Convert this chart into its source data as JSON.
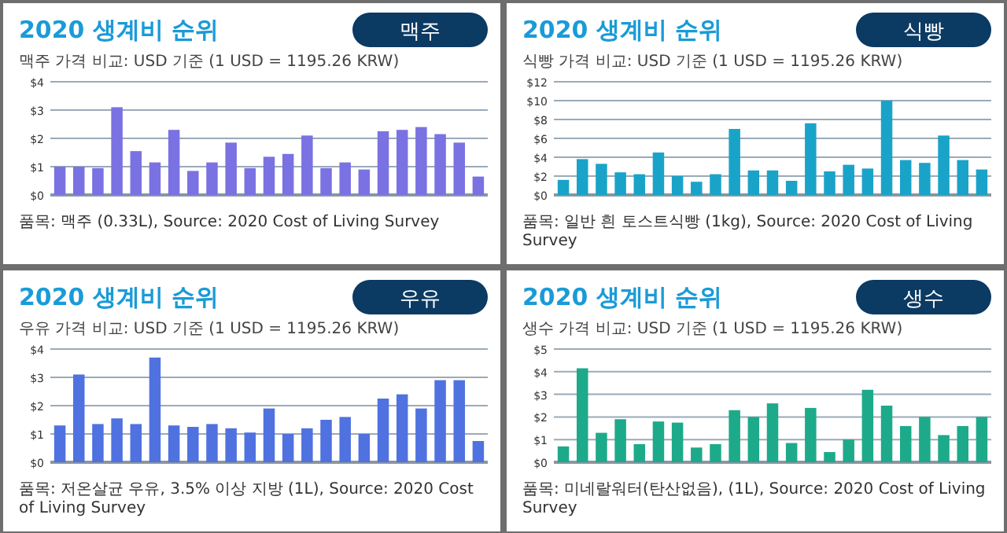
{
  "chart_data": [
    {
      "type": "bar",
      "title": "2020 생계비 순위",
      "subtitle": "맥주",
      "ylabel": "맥주 가격 비교: USD 기준 (1 USD = 1195.26 KRW)",
      "annotations": [
        "품목: 맥주 (0.33L), Source: 2020 Cost of Living Survey"
      ],
      "categories": [
        null,
        null,
        null,
        null,
        null,
        null,
        null,
        null,
        null,
        null,
        null,
        null,
        null,
        null,
        null,
        null,
        null,
        null,
        null,
        null,
        null,
        null,
        null
      ],
      "values": [
        1.0,
        1.0,
        0.95,
        3.1,
        1.55,
        1.15,
        2.3,
        0.85,
        1.15,
        1.85,
        0.95,
        1.35,
        1.45,
        2.1,
        0.95,
        1.15,
        0.9,
        2.25,
        2.3,
        2.4,
        2.15,
        1.85,
        0.65
      ],
      "color": "#7a72e2",
      "ylim": [
        0,
        4
      ],
      "yticks": [
        {
          "value": 0,
          "label": "$0"
        },
        {
          "value": 1,
          "label": "$1"
        },
        {
          "value": 2,
          "label": "$2"
        },
        {
          "value": 3,
          "label": "$3"
        },
        {
          "value": 4,
          "label": "$4"
        }
      ],
      "grid": "y"
    },
    {
      "type": "bar",
      "title": "2020 생계비 순위",
      "subtitle": "식빵",
      "ylabel": "식빵 가격 비교: USD 기준 (1 USD = 1195.26 KRW)",
      "annotations": [
        "품목: 일반 흰 토스트식빵 (1kg), Source: 2020 Cost of Living Survey"
      ],
      "categories": [
        null,
        null,
        null,
        null,
        null,
        null,
        null,
        null,
        null,
        null,
        null,
        null,
        null,
        null,
        null,
        null,
        null,
        null,
        null,
        null,
        null,
        null,
        null
      ],
      "values": [
        1.6,
        3.8,
        3.3,
        2.4,
        2.2,
        4.5,
        2.0,
        1.4,
        2.2,
        7.0,
        2.6,
        2.6,
        1.5,
        7.6,
        2.5,
        3.2,
        2.8,
        10.0,
        3.7,
        3.4,
        6.3,
        3.7,
        2.7
      ],
      "color": "#1aa3c8",
      "ylim": [
        0,
        12
      ],
      "yticks": [
        {
          "value": 0,
          "label": "$0"
        },
        {
          "value": 2,
          "label": "$2"
        },
        {
          "value": 4,
          "label": "$4"
        },
        {
          "value": 6,
          "label": "$6"
        },
        {
          "value": 8,
          "label": "$8"
        },
        {
          "value": 10,
          "label": "$10"
        },
        {
          "value": 12,
          "label": "$12"
        }
      ],
      "grid": "y"
    },
    {
      "type": "bar",
      "title": "2020 생계비 순위",
      "subtitle": "우유",
      "ylabel": "우유 가격 비교: USD 기준 (1 USD = 1195.26 KRW)",
      "annotations": [
        "품목: 저온살균 우유, 3.5% 이상 지방 (1L), Source: 2020 Cost of Living Survey"
      ],
      "categories": [
        null,
        null,
        null,
        null,
        null,
        null,
        null,
        null,
        null,
        null,
        null,
        null,
        null,
        null,
        null,
        null,
        null,
        null,
        null,
        null,
        null,
        null,
        null
      ],
      "values": [
        1.3,
        3.1,
        1.35,
        1.55,
        1.35,
        3.7,
        1.3,
        1.25,
        1.35,
        1.2,
        1.05,
        1.9,
        1.0,
        1.2,
        1.5,
        1.6,
        1.0,
        2.25,
        2.4,
        1.9,
        2.9,
        2.9,
        0.75
      ],
      "color": "#4f72e0",
      "ylim": [
        0,
        4
      ],
      "yticks": [
        {
          "value": 0,
          "label": "$0"
        },
        {
          "value": 1,
          "label": "$1"
        },
        {
          "value": 2,
          "label": "$2"
        },
        {
          "value": 3,
          "label": "$3"
        },
        {
          "value": 4,
          "label": "$4"
        }
      ],
      "grid": "y"
    },
    {
      "type": "bar",
      "title": "2020 생계비 순위",
      "subtitle": "생수",
      "ylabel": "생수 가격 비교: USD 기준 (1 USD = 1195.26 KRW)",
      "annotations": [
        "품목: 미네랄워터(탄산없음), (1L), Source: 2020 Cost of Living Survey"
      ],
      "categories": [
        null,
        null,
        null,
        null,
        null,
        null,
        null,
        null,
        null,
        null,
        null,
        null,
        null,
        null,
        null,
        null,
        null,
        null,
        null,
        null,
        null,
        null,
        null
      ],
      "values": [
        0.7,
        4.15,
        1.3,
        1.9,
        0.8,
        1.8,
        1.75,
        0.65,
        0.8,
        2.3,
        2.0,
        2.6,
        0.85,
        2.4,
        0.45,
        1.0,
        3.2,
        2.5,
        1.6,
        2.0,
        1.2,
        1.6,
        2.0
      ],
      "color": "#1daa8a",
      "ylim": [
        0,
        5
      ],
      "yticks": [
        {
          "value": 0,
          "label": "$0"
        },
        {
          "value": 1,
          "label": "$1"
        },
        {
          "value": 2,
          "label": "$2"
        },
        {
          "value": 3,
          "label": "$3"
        },
        {
          "value": 4,
          "label": "$4"
        },
        {
          "value": 5,
          "label": "$5"
        }
      ],
      "grid": "y"
    }
  ]
}
